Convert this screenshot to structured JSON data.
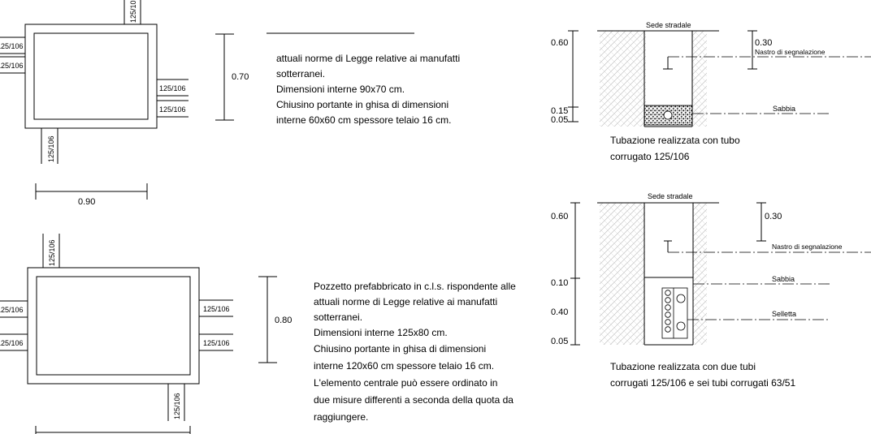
{
  "pipe_label": "125/106",
  "upper_pit": {
    "height_dim": "0.70",
    "width_dim": "0.90",
    "notes": [
      "attuali norme di Legge relative ai manufatti",
      "sotterranei.",
      "Dimensioni interne 90x70 cm.",
      "Chiusino portante in ghisa di dimensioni",
      "interne 60x60 cm spessore telaio 16 cm."
    ]
  },
  "lower_pit": {
    "height_dim": "0.80",
    "notes": [
      "Pozzetto prefabbricato in c.l.s. rispondente alle",
      "attuali norme di Legge relative ai manufatti",
      "sotterranei.",
      "Dimensioni interne 125x80 cm.",
      "Chiusino portante in ghisa di dimensioni",
      "interne 120x60 cm spessore telaio 16 cm.",
      "L'elemento centrale può essere ordinato in",
      "due misure differenti a seconda della quota da",
      "raggiungere."
    ]
  },
  "section_top": {
    "road": "Sede stradale",
    "tape": "Nastro di segnalazione",
    "sand": "Sabbia",
    "dims": {
      "d060": "0.60",
      "d015": "0.15",
      "d005": "0.05",
      "d030": "0.30"
    },
    "caption": [
      "Tubazione realizzata con tubo",
      "corrugato 125/106"
    ]
  },
  "section_bottom": {
    "road": "Sede stradale",
    "tape": "Nastro di segnalazione",
    "sand": "Sabbia",
    "saddle": "Selletta",
    "dims": {
      "d060": "0.60",
      "d010": "0.10",
      "d040": "0.40",
      "d005": "0.05",
      "d030": "0.30"
    },
    "caption": [
      "Tubazione realizzata con due tubi",
      "corrugati 125/106 e sei tubi corrugati 63/51"
    ]
  }
}
